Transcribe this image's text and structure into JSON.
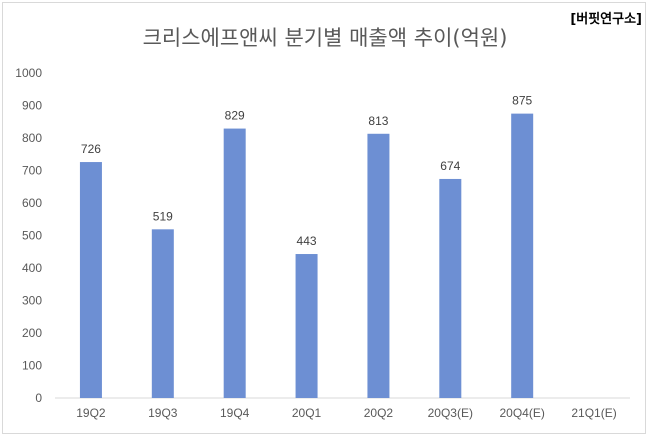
{
  "chart_data": {
    "type": "bar",
    "title": "크리스에프앤씨 분기별 매출액 추이(억원)",
    "watermark": "[버핏연구소]",
    "categories": [
      "19Q2",
      "19Q3",
      "19Q4",
      "20Q1",
      "20Q2",
      "20Q3(E)",
      "20Q4(E)",
      "21Q1(E)"
    ],
    "values": [
      726,
      519,
      829,
      443,
      813,
      674,
      875,
      null
    ],
    "data_labels": [
      "726",
      "519",
      "829",
      "443",
      "813",
      "674",
      "875",
      ""
    ],
    "ylim": [
      0,
      1000
    ],
    "yticks": [
      0,
      100,
      200,
      300,
      400,
      500,
      600,
      700,
      800,
      900,
      1000
    ],
    "grid": false,
    "legend": "none",
    "colors": {
      "bar": "#6d8fd3",
      "axis": "#d9d9d9"
    }
  }
}
